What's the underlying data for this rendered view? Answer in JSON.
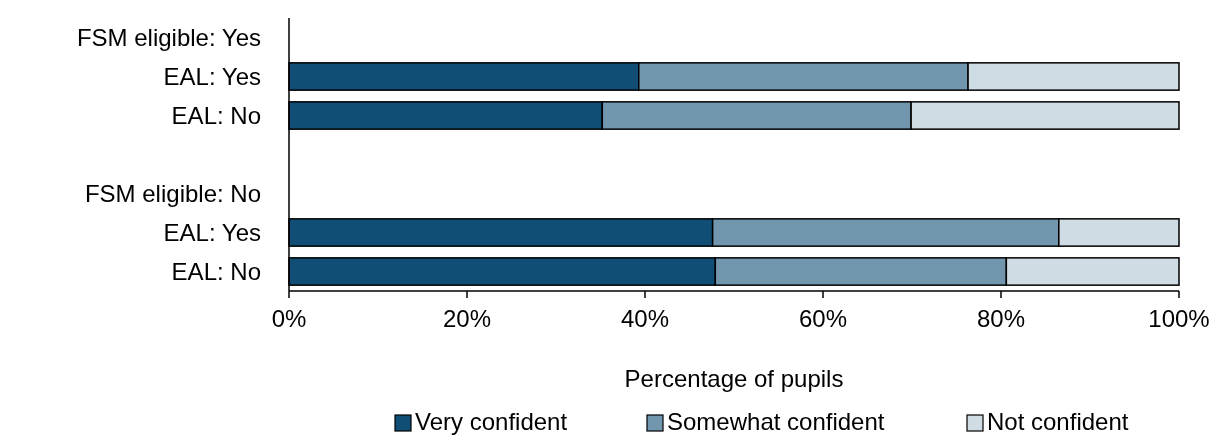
{
  "chart_data": {
    "type": "bar",
    "orientation": "horizontal",
    "stacked": true,
    "xlabel": "Percentage of pupils",
    "categories": [
      "FSM eligible: Yes",
      "EAL: Yes",
      "EAL: No",
      null,
      "FSM eligible: No",
      "EAL: Yes",
      "EAL: No"
    ],
    "series": [
      {
        "name": "Very confident",
        "color": "#104e75",
        "values": [
          null,
          39.3,
          35.2,
          null,
          null,
          47.6,
          47.9
        ]
      },
      {
        "name": "Somewhat confident",
        "color": "#7296ae",
        "values": [
          null,
          37.0,
          34.7,
          null,
          null,
          38.9,
          32.7
        ]
      },
      {
        "name": "Not confident",
        "color": "#d0dce4",
        "values": [
          null,
          23.7,
          30.1,
          null,
          null,
          13.5,
          19.4
        ]
      }
    ],
    "xlim": [
      0,
      100
    ],
    "xticks": [
      {
        "value": 0,
        "label": "0%"
      },
      {
        "value": 20,
        "label": "20%"
      },
      {
        "value": 40,
        "label": "40%"
      },
      {
        "value": 60,
        "label": "60%"
      },
      {
        "value": 80,
        "label": "80%"
      },
      {
        "value": 100,
        "label": "100%"
      }
    ],
    "grid": false,
    "legend": "bottom"
  }
}
